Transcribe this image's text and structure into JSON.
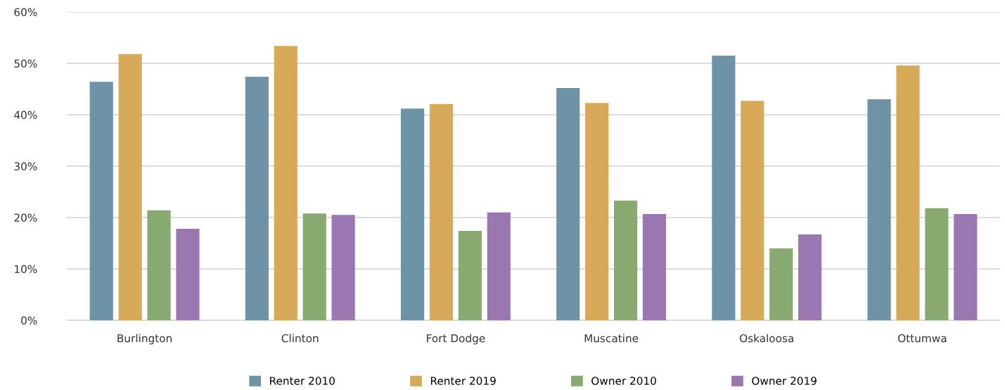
{
  "chart_data": {
    "type": "bar",
    "categories": [
      "Burlington",
      "Clinton",
      "Fort Dodge",
      "Muscatine",
      "Oskaloosa",
      "Ottumwa"
    ],
    "series": [
      {
        "name": "Renter 2010",
        "color": "#6f93a6",
        "values": [
          46.4,
          47.4,
          41.2,
          45.2,
          51.5,
          43.0
        ]
      },
      {
        "name": "Renter 2019",
        "color": "#d6aa58",
        "values": [
          51.8,
          53.4,
          42.1,
          42.3,
          42.7,
          49.6
        ]
      },
      {
        "name": "Owner 2010",
        "color": "#88aa70",
        "values": [
          21.4,
          20.8,
          17.4,
          23.3,
          14.0,
          21.8
        ]
      },
      {
        "name": "Owner 2019",
        "color": "#9a77b0",
        "values": [
          17.8,
          20.5,
          21.0,
          20.7,
          16.7,
          20.7
        ]
      }
    ],
    "ylim": [
      0,
      60
    ],
    "yticks": [
      {
        "value": 0,
        "label": "0%"
      },
      {
        "value": 10,
        "label": "10%"
      },
      {
        "value": 20,
        "label": "20%"
      },
      {
        "value": 30,
        "label": "30%"
      },
      {
        "value": 40,
        "label": "40%"
      },
      {
        "value": 50,
        "label": "50%"
      },
      {
        "value": 60,
        "label": "60%"
      }
    ],
    "grid": "y",
    "legend": "bottom"
  }
}
